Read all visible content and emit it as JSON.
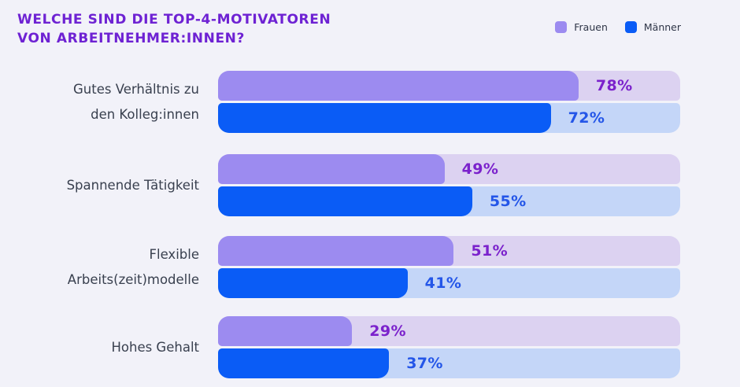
{
  "title": {
    "line1": "WELCHE SIND DIE TOP-4-MOTIVATOREN",
    "line2": "VON ARBEITNEHMER:INNEN?"
  },
  "legend": {
    "items": [
      {
        "label": "Frauen",
        "color": "#9C8BF0"
      },
      {
        "label": "Männer",
        "color": "#0A5CF6"
      }
    ],
    "position": "top-right"
  },
  "colors": {
    "background": "#F2F2F9",
    "title_text": "#6E22D3",
    "category_text": "#39404F",
    "frauen_fill": "#9C8BF0",
    "frauen_track": "#DCD2F1",
    "frauen_value_text": "#7B22CC",
    "maenner_fill": "#0A5CF6",
    "maenner_track": "#C4D6F8",
    "maenner_value_text": "#2456E8"
  },
  "chart_data": {
    "type": "bar",
    "orientation": "horizontal",
    "title": "Welche sind die Top-4-Motivatoren von Arbeitnehmer:innen?",
    "categories": [
      "Gutes Verhältnis zu den Kolleg:innen",
      "Spannende Tätigkeit",
      "Flexible Arbeits(zeit)modelle",
      "Hohes Gehalt"
    ],
    "series": [
      {
        "name": "Frauen",
        "color": "#9C8BF0",
        "values": [
          78,
          49,
          51,
          29
        ]
      },
      {
        "name": "Männer",
        "color": "#0A5CF6",
        "values": [
          72,
          55,
          41,
          37
        ]
      }
    ],
    "value_suffix": "%",
    "xlim": [
      0,
      100
    ],
    "grid": false,
    "legend_position": "top-right"
  },
  "rows": [
    {
      "label_lines": [
        "Gutes Verhältnis zu",
        "den Kolleg:innen"
      ],
      "frauen_label": "78%",
      "maenner_label": "72%"
    },
    {
      "label_lines": [
        "Spannende Tätigkeit"
      ],
      "frauen_label": "49%",
      "maenner_label": "55%"
    },
    {
      "label_lines": [
        "Flexible",
        "Arbeits(zeit)modelle"
      ],
      "frauen_label": "51%",
      "maenner_label": "41%"
    },
    {
      "label_lines": [
        "Hohes Gehalt"
      ],
      "frauen_label": "29%",
      "maenner_label": "37%"
    }
  ]
}
